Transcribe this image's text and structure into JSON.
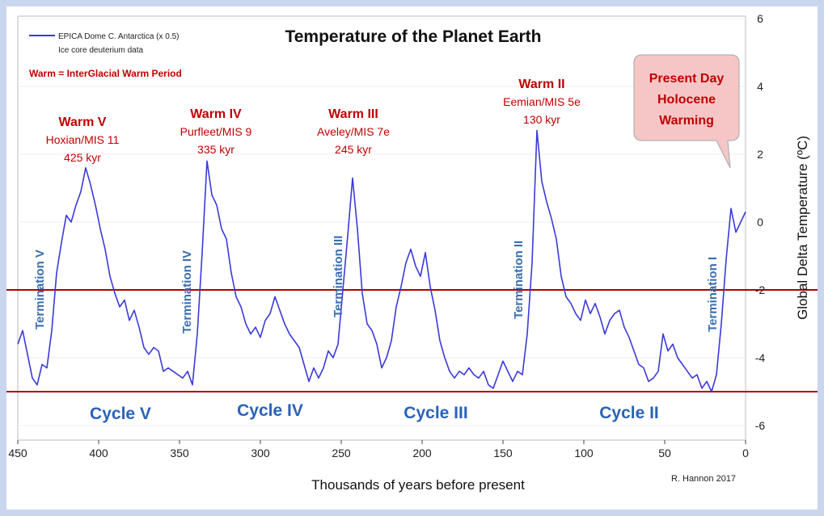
{
  "chart_data": {
    "type": "line",
    "title": "Temperature of the Planet Earth",
    "xlabel": "Thousands of years before present",
    "ylabel": "Global Delta Temperature (ºC)",
    "xlim": [
      450,
      0
    ],
    "ylim": [
      -6,
      6
    ],
    "x_ticks": [
      "450",
      "400",
      "350",
      "300",
      "250",
      "200",
      "150",
      "100",
      "50",
      "0"
    ],
    "y_ticks": [
      "6",
      "4",
      "2",
      "0",
      "-2",
      "-4",
      "-6"
    ],
    "legend": {
      "series_label": "EPICA Dome C. Antarctica  (x 0.5)",
      "sub_label": "Ice core deuterium data",
      "color": "#3a3ad8"
    },
    "note": "Warm = InterGlacial Warm Period",
    "reference_lines": [
      {
        "y": -2.0,
        "color": "#b00000"
      },
      {
        "y": -5.0,
        "color": "#b00000"
      }
    ],
    "series": [
      {
        "color": "#3a3ad8",
        "x": [
          450,
          447,
          444,
          441,
          438,
          435,
          432,
          429,
          426,
          423,
          420,
          417,
          414,
          411,
          408,
          405,
          402,
          399,
          396,
          393,
          390,
          387,
          384,
          381,
          378,
          375,
          372,
          369,
          366,
          363,
          360,
          357,
          354,
          351,
          348,
          345,
          342,
          339,
          336,
          333,
          330,
          327,
          324,
          321,
          318,
          315,
          312,
          309,
          306,
          303,
          300,
          297,
          294,
          291,
          288,
          285,
          282,
          279,
          276,
          273,
          270,
          267,
          264,
          261,
          258,
          255,
          252,
          249,
          246,
          243,
          240,
          237,
          234,
          231,
          228,
          225,
          222,
          219,
          216,
          213,
          210,
          207,
          204,
          201,
          198,
          195,
          192,
          189,
          186,
          183,
          180,
          177,
          174,
          171,
          168,
          165,
          162,
          159,
          156,
          153,
          150,
          147,
          144,
          141,
          138,
          135,
          132,
          129,
          126,
          123,
          120,
          117,
          114,
          111,
          108,
          105,
          102,
          99,
          96,
          93,
          90,
          87,
          84,
          81,
          78,
          75,
          72,
          69,
          66,
          63,
          60,
          57,
          54,
          51,
          48,
          45,
          42,
          39,
          36,
          33,
          30,
          27,
          24,
          21,
          18,
          15,
          12,
          9,
          6,
          3,
          0
        ],
        "y": [
          -3.6,
          -3.2,
          -3.9,
          -4.6,
          -4.8,
          -4.2,
          -4.3,
          -3.2,
          -1.5,
          -0.6,
          0.2,
          0.0,
          0.5,
          0.9,
          1.6,
          1.1,
          0.5,
          -0.2,
          -0.8,
          -1.6,
          -2.1,
          -2.5,
          -2.3,
          -2.9,
          -2.6,
          -3.1,
          -3.7,
          -3.9,
          -3.7,
          -3.8,
          -4.4,
          -4.3,
          -4.4,
          -4.5,
          -4.6,
          -4.4,
          -4.8,
          -3.3,
          -0.9,
          1.8,
          0.8,
          0.5,
          -0.2,
          -0.5,
          -1.5,
          -2.2,
          -2.5,
          -3.0,
          -3.3,
          -3.1,
          -3.4,
          -2.9,
          -2.7,
          -2.2,
          -2.6,
          -3.0,
          -3.3,
          -3.5,
          -3.7,
          -4.2,
          -4.7,
          -4.3,
          -4.6,
          -4.3,
          -3.8,
          -4.0,
          -3.6,
          -2.0,
          -0.4,
          1.3,
          -0.2,
          -2.1,
          -3.0,
          -3.2,
          -3.6,
          -4.3,
          -4.0,
          -3.5,
          -2.5,
          -1.9,
          -1.2,
          -0.8,
          -1.3,
          -1.6,
          -0.9,
          -1.9,
          -2.6,
          -3.5,
          -4.0,
          -4.4,
          -4.6,
          -4.4,
          -4.5,
          -4.3,
          -4.5,
          -4.6,
          -4.4,
          -4.8,
          -4.9,
          -4.5,
          -4.1,
          -4.4,
          -4.7,
          -4.4,
          -4.5,
          -3.3,
          -1.2,
          2.7,
          1.2,
          0.6,
          0.1,
          -0.5,
          -1.6,
          -2.2,
          -2.4,
          -2.7,
          -2.9,
          -2.3,
          -2.7,
          -2.4,
          -2.8,
          -3.3,
          -2.9,
          -2.7,
          -2.6,
          -3.1,
          -3.4,
          -3.8,
          -4.2,
          -4.3,
          -4.7,
          -4.6,
          -4.4,
          -3.3,
          -3.8,
          -3.6,
          -4.0,
          -4.2,
          -4.4,
          -4.6,
          -4.5,
          -4.9,
          -4.7,
          -5.0,
          -4.5,
          -3.0,
          -1.1,
          0.4,
          -0.3,
          0.0,
          0.3
        ]
      }
    ],
    "annotations": [
      {
        "label": "Warm V",
        "sub1": "Hoxian/MIS 11",
        "sub2": "425 kyr"
      },
      {
        "label": "Warm IV",
        "sub1": "Purfleet/MIS  9",
        "sub2": "335 kyr"
      },
      {
        "label": "Warm III",
        "sub1": "Aveley/MIS 7e",
        "sub2": "245 kyr"
      },
      {
        "label": "Warm II",
        "sub1": "Eemian/MIS 5e",
        "sub2": "130 kyr"
      }
    ],
    "terminations": [
      "Termination V",
      "Termination IV",
      "Termination III",
      "Termination II",
      "Termination I"
    ],
    "cycles": [
      "Cycle V",
      "Cycle IV",
      "Cycle III",
      "Cycle II"
    ],
    "callout": [
      "Present Day",
      "Holocene",
      "Warming"
    ],
    "credit": "R. Hannon 2017"
  }
}
